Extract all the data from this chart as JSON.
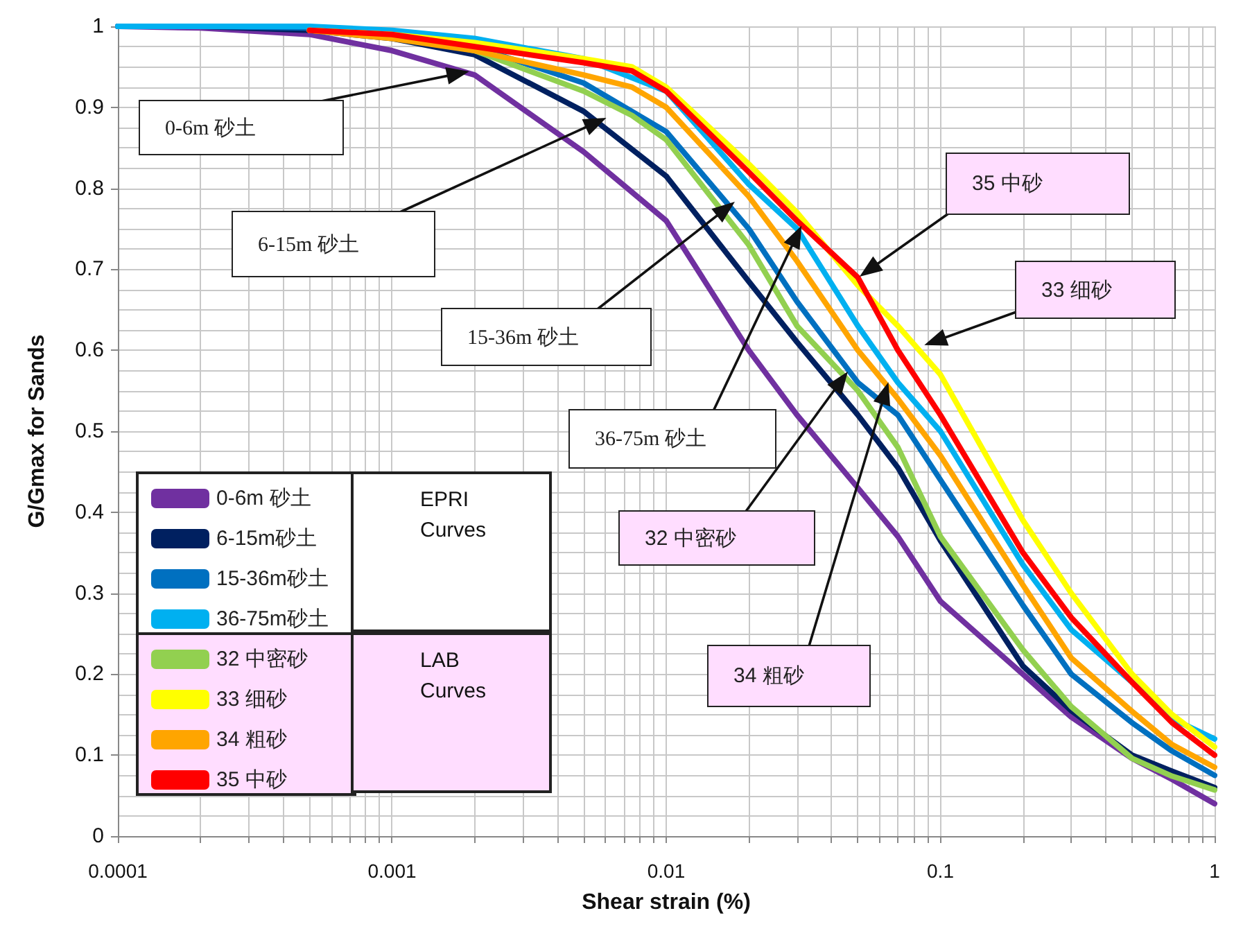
{
  "chart_data": {
    "type": "line",
    "xlabel": "Shear strain (%)",
    "ylabel": "G/Gmax for Sands",
    "log": "x",
    "grid": true,
    "legend": "bottom left",
    "marker": "none",
    "line_style": "solid",
    "xlim": [
      0.0001,
      1
    ],
    "ylim": [
      0,
      1
    ],
    "xticks": [
      {
        "value": 0.0001,
        "label": "0.0001"
      },
      {
        "value": 0.0002,
        "label": null
      },
      {
        "value": 0.0003,
        "label": null
      },
      {
        "value": 0.0004,
        "label": null
      },
      {
        "value": 0.0005,
        "label": null
      },
      {
        "value": 0.0006,
        "label": null
      },
      {
        "value": 0.0007,
        "label": null
      },
      {
        "value": 0.0008,
        "label": null
      },
      {
        "value": 0.0009,
        "label": null
      },
      {
        "value": 0.001,
        "label": "0.001"
      },
      {
        "value": 0.002,
        "label": null
      },
      {
        "value": 0.003,
        "label": null
      },
      {
        "value": 0.004,
        "label": null
      },
      {
        "value": 0.005,
        "label": null
      },
      {
        "value": 0.006,
        "label": null
      },
      {
        "value": 0.007,
        "label": null
      },
      {
        "value": 0.008,
        "label": null
      },
      {
        "value": 0.009,
        "label": null
      },
      {
        "value": 0.01,
        "label": "0.01"
      },
      {
        "value": 0.02,
        "label": null
      },
      {
        "value": 0.03,
        "label": null
      },
      {
        "value": 0.04,
        "label": null
      },
      {
        "value": 0.05,
        "label": null
      },
      {
        "value": 0.06,
        "label": null
      },
      {
        "value": 0.07,
        "label": null
      },
      {
        "value": 0.08,
        "label": null
      },
      {
        "value": 0.09,
        "label": null
      },
      {
        "value": 0.1,
        "label": "0.1"
      },
      {
        "value": 0.2,
        "label": null
      },
      {
        "value": 0.3,
        "label": null
      },
      {
        "value": 0.4,
        "label": null
      },
      {
        "value": 0.5,
        "label": null
      },
      {
        "value": 0.6,
        "label": null
      },
      {
        "value": 0.7,
        "label": null
      },
      {
        "value": 0.8,
        "label": null
      },
      {
        "value": 0.9,
        "label": null
      },
      {
        "value": 1,
        "label": "1"
      }
    ],
    "yticks": [
      0,
      0.1,
      0.2,
      0.3,
      0.4,
      0.5,
      0.6,
      0.7,
      0.8,
      0.9,
      1
    ],
    "x": [
      0.0001,
      0.0002,
      0.0005,
      0.001,
      0.002,
      0.005,
      0.01,
      0.02,
      0.03,
      0.05,
      0.07,
      0.1,
      0.2,
      0.3,
      0.5,
      0.7,
      1
    ],
    "series": [
      {
        "name": "0-6m 砂土",
        "color": "#7030a0",
        "values": [
          1,
          0.998,
          0.99,
          0.97,
          0.94,
          0.845,
          0.76,
          0.6,
          0.52,
          0.43,
          0.37,
          0.29,
          0.2,
          0.147,
          0.096,
          0.07,
          0.04
        ]
      },
      {
        "name": "6-15m砂土",
        "color": "#002060",
        "values": [
          1,
          1,
          0.995,
          0.985,
          0.965,
          0.895,
          0.815,
          0.685,
          0.61,
          0.52,
          0.455,
          0.365,
          0.21,
          0.155,
          0.1,
          0.08,
          0.06
        ]
      },
      {
        "name": "15-36m砂土",
        "color": "#0070c0",
        "values": [
          1,
          1,
          0.998,
          0.99,
          0.975,
          0.93,
          0.87,
          0.75,
          0.66,
          0.56,
          0.52,
          0.44,
          0.285,
          0.2,
          0.14,
          0.105,
          0.075
        ]
      },
      {
        "name": "36-75m砂土",
        "color": "#00b0f0",
        "values": [
          1,
          1,
          1,
          0.995,
          0.985,
          0.96,
          0.92,
          0.805,
          0.75,
          0.63,
          0.56,
          0.5,
          0.335,
          0.255,
          0.19,
          0.145,
          0.12
        ]
      },
      {
        "name": "32 中密砂",
        "color": "#92d050",
        "x": [
          0.0005,
          0.001,
          0.002,
          0.005,
          0.0075,
          0.01,
          0.02,
          0.03,
          0.05,
          0.07,
          0.1,
          0.2,
          0.3,
          0.5,
          0.7,
          1
        ],
        "values": [
          0.995,
          0.99,
          0.97,
          0.92,
          0.89,
          0.86,
          0.73,
          0.63,
          0.55,
          0.48,
          0.37,
          0.23,
          0.16,
          0.096,
          0.074,
          0.057
        ]
      },
      {
        "name": "33 细砂",
        "color": "#ffff00",
        "x": [
          0.0005,
          0.001,
          0.002,
          0.005,
          0.0075,
          0.01,
          0.02,
          0.03,
          0.05,
          0.07,
          0.1,
          0.2,
          0.3,
          0.5,
          0.7,
          1
        ],
        "values": [
          0.995,
          0.99,
          0.98,
          0.96,
          0.95,
          0.925,
          0.83,
          0.77,
          0.68,
          0.63,
          0.57,
          0.39,
          0.3,
          0.2,
          0.15,
          0.11
        ]
      },
      {
        "name": "34 粗砂",
        "color": "#ffa500",
        "x": [
          0.0005,
          0.001,
          0.002,
          0.005,
          0.0075,
          0.01,
          0.02,
          0.03,
          0.05,
          0.07,
          0.1,
          0.2,
          0.3,
          0.5,
          0.7,
          1
        ],
        "values": [
          0.995,
          0.985,
          0.97,
          0.94,
          0.925,
          0.9,
          0.79,
          0.71,
          0.6,
          0.54,
          0.47,
          0.31,
          0.22,
          0.154,
          0.113,
          0.085
        ]
      },
      {
        "name": "35 中砂",
        "color": "#ff0000",
        "x": [
          0.0005,
          0.001,
          0.002,
          0.005,
          0.0075,
          0.01,
          0.02,
          0.03,
          0.05,
          0.07,
          0.1,
          0.2,
          0.3,
          0.5,
          0.7,
          1
        ],
        "values": [
          0.995,
          0.99,
          0.975,
          0.955,
          0.945,
          0.92,
          0.82,
          0.76,
          0.69,
          0.6,
          0.52,
          0.35,
          0.27,
          0.19,
          0.14,
          0.1
        ]
      }
    ],
    "annotations": [
      "0-6m 砂土",
      "6-15m 砂土",
      "15-36m 砂土",
      "36-75m 砂土",
      "32  中密砂",
      "33  细砂",
      "34  粗砂",
      "35 中砂",
      "EPRI Curves",
      "LAB Curves"
    ]
  }
}
